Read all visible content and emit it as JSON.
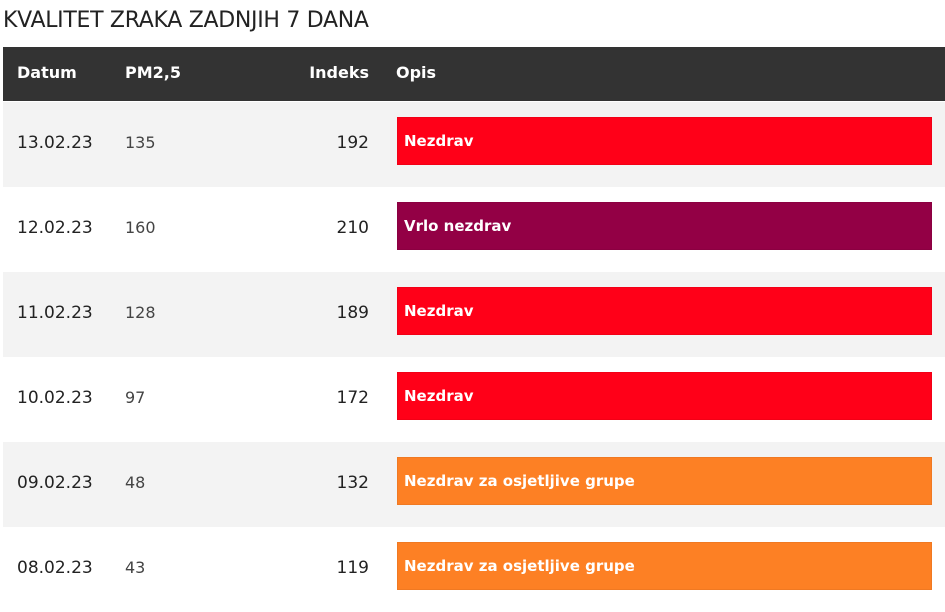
{
  "header": {
    "title": "KVALITET ZRAKA ZADNJIH 7 DANA"
  },
  "table": {
    "columns": [
      "Datum",
      "PM2,5",
      "Indeks",
      "Opis"
    ],
    "rows": [
      {
        "date": "13.02.23",
        "pm25": 135,
        "index": 192,
        "desc": "Nezdrav",
        "color": "#ff0018"
      },
      {
        "date": "12.02.23",
        "pm25": 160,
        "index": 210,
        "desc": "Vrlo nezdrav",
        "color": "#930045"
      },
      {
        "date": "11.02.23",
        "pm25": 128,
        "index": 189,
        "desc": "Nezdrav",
        "color": "#ff0018"
      },
      {
        "date": "10.02.23",
        "pm25": 97,
        "index": 172,
        "desc": "Nezdrav",
        "color": "#ff0018"
      },
      {
        "date": "09.02.23",
        "pm25": 48,
        "index": 132,
        "desc": "Nezdrav za osjetljive grupe",
        "color": "#fd8024"
      },
      {
        "date": "08.02.23",
        "pm25": 43,
        "index": 119,
        "desc": "Nezdrav za osjetljive grupe",
        "color": "#fd8024"
      }
    ]
  }
}
